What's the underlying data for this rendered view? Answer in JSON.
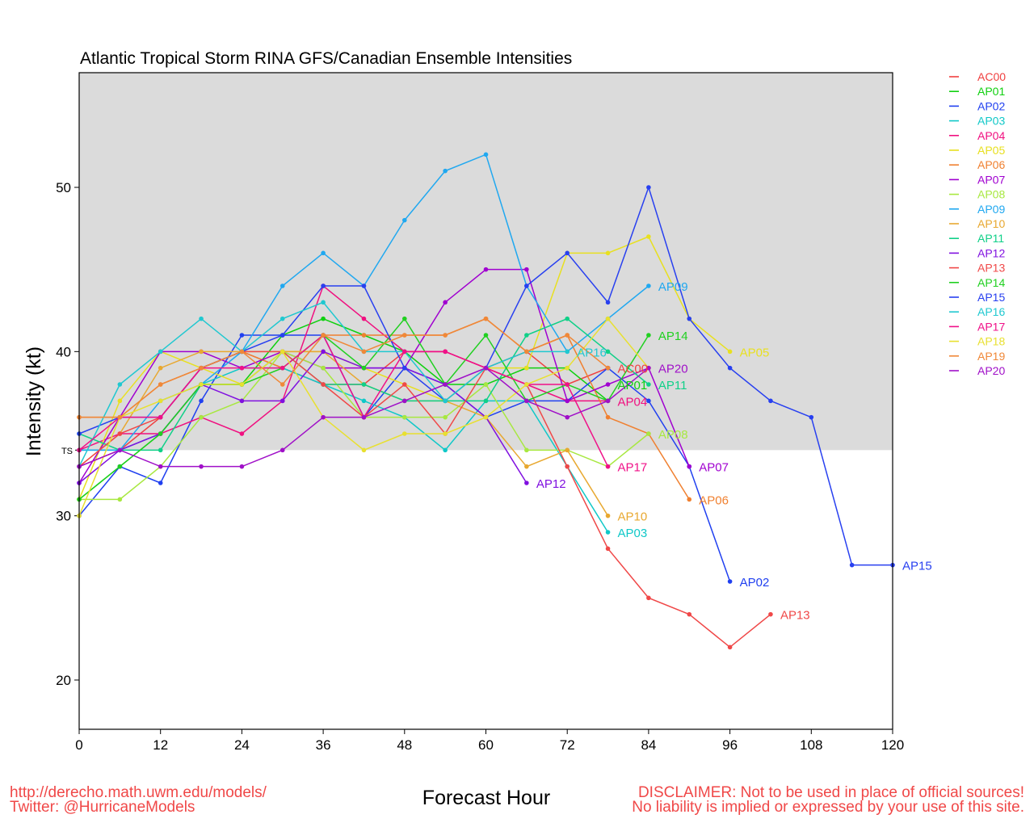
{
  "chart_data": {
    "type": "line",
    "title": "Atlantic Tropical Storm RINA GFS/Canadian Ensemble Intensities",
    "xlabel": "Forecast Hour",
    "ylabel": "Intensity (kt)",
    "xlim": [
      0,
      120
    ],
    "ylim": [
      17,
      57
    ],
    "xticks": [
      0,
      12,
      24,
      36,
      48,
      60,
      72,
      84,
      96,
      108,
      120
    ],
    "yticks": [
      20,
      30,
      40,
      50
    ],
    "threshold": {
      "label": "TS",
      "value": 34,
      "shade_above": true,
      "shade_color": "#dbdbdb"
    },
    "legend_position": "right-outside-top",
    "series": [
      {
        "name": "AC00",
        "color": "#f04040",
        "x": [
          0,
          6,
          12,
          18,
          24,
          30,
          36,
          42,
          48,
          54,
          60,
          66,
          72,
          78
        ],
        "values": [
          33,
          34,
          36,
          39,
          40,
          39,
          38,
          38,
          40,
          40,
          39,
          40,
          38,
          39
        ]
      },
      {
        "name": "AP01",
        "color": "#10d010",
        "x": [
          0,
          6,
          12,
          18,
          24,
          30,
          36,
          42,
          48,
          54,
          60,
          66,
          72,
          78
        ],
        "values": [
          31,
          33,
          35,
          38,
          38,
          41,
          42,
          41,
          40,
          38,
          38,
          39,
          39,
          37
        ]
      },
      {
        "name": "AP02",
        "color": "#2040f0",
        "x": [
          0,
          6,
          12,
          18,
          24,
          30,
          36,
          42,
          48,
          54,
          60,
          66,
          72,
          78,
          84,
          90,
          96
        ],
        "values": [
          30,
          33,
          32,
          37,
          41,
          41,
          41,
          36,
          39,
          38,
          36,
          37,
          37,
          39,
          37,
          33,
          26
        ]
      },
      {
        "name": "AP03",
        "color": "#10c8c8",
        "x": [
          0,
          6,
          12,
          18,
          24,
          30,
          36,
          42,
          48,
          54,
          60,
          66,
          72,
          78
        ],
        "values": [
          34,
          34,
          35,
          38,
          39,
          39,
          38,
          37,
          36,
          34,
          37,
          37,
          33,
          29
        ]
      },
      {
        "name": "AP04",
        "color": "#f01080",
        "x": [
          0,
          6,
          12,
          18,
          24,
          30,
          36,
          42,
          48,
          54,
          60,
          66,
          72,
          78
        ],
        "values": [
          34,
          35,
          35,
          36,
          35,
          37,
          44,
          42,
          40,
          40,
          39,
          38,
          37,
          37
        ]
      },
      {
        "name": "AP05",
        "color": "#e8e020",
        "x": [
          0,
          6,
          12,
          18,
          24,
          30,
          36,
          42,
          48,
          54,
          60,
          66,
          72,
          78,
          84,
          90,
          96
        ],
        "values": [
          31,
          37,
          40,
          39,
          38,
          40,
          40,
          39,
          38,
          37,
          39,
          39,
          46,
          46,
          47,
          42,
          40
        ]
      },
      {
        "name": "AP06",
        "color": "#f08030",
        "x": [
          0,
          6,
          12,
          18,
          24,
          30,
          36,
          42,
          48,
          54,
          60,
          66,
          72,
          78,
          84,
          90
        ],
        "values": [
          36,
          36,
          38,
          39,
          40,
          39,
          41,
          41,
          41,
          41,
          42,
          40,
          41,
          36,
          35,
          31
        ]
      },
      {
        "name": "AP07",
        "color": "#a000d0",
        "x": [
          0,
          6,
          12,
          18,
          24,
          30,
          36,
          42,
          48,
          54,
          60,
          66,
          72,
          78,
          84,
          90
        ],
        "values": [
          32,
          36,
          40,
          40,
          39,
          40,
          39,
          39,
          39,
          43,
          45,
          45,
          37,
          38,
          39,
          33
        ]
      },
      {
        "name": "AP08",
        "color": "#a8e840",
        "x": [
          0,
          6,
          12,
          18,
          24,
          30,
          36,
          42,
          48,
          54,
          60,
          66,
          72,
          78,
          84
        ],
        "values": [
          31,
          31,
          33,
          36,
          37,
          40,
          39,
          36,
          36,
          36,
          38,
          34,
          34,
          33,
          35
        ]
      },
      {
        "name": "AP09",
        "color": "#20a8f0",
        "x": [
          0,
          6,
          12,
          18,
          24,
          30,
          36,
          42,
          48,
          54,
          60,
          66,
          72,
          78,
          84
        ],
        "values": [
          34,
          34,
          37,
          38,
          40,
          44,
          46,
          44,
          48,
          51,
          52,
          44,
          40,
          42,
          44
        ]
      },
      {
        "name": "AP10",
        "color": "#e8a830",
        "x": [
          0,
          6,
          12,
          18,
          24,
          30,
          36,
          42,
          48,
          54,
          60,
          66,
          72,
          78
        ],
        "values": [
          33,
          35,
          39,
          40,
          40,
          40,
          40,
          38,
          37,
          37,
          36,
          33,
          34,
          30
        ]
      },
      {
        "name": "AP11",
        "color": "#10d088",
        "x": [
          0,
          6,
          12,
          18,
          24,
          30,
          36,
          42,
          48,
          54,
          60,
          66,
          72,
          78,
          84
        ],
        "values": [
          35,
          34,
          34,
          38,
          38,
          40,
          38,
          38,
          37,
          37,
          37,
          41,
          42,
          40,
          38
        ]
      },
      {
        "name": "AP12",
        "color": "#8010e0",
        "x": [
          0,
          6,
          12,
          18,
          24,
          30,
          36,
          42,
          48,
          54,
          60,
          66
        ],
        "values": [
          32,
          34,
          35,
          38,
          37,
          37,
          40,
          39,
          39,
          38,
          36,
          32
        ]
      },
      {
        "name": "AP13",
        "color": "#f04848",
        "x": [
          0,
          6,
          12,
          18,
          24,
          30,
          36,
          42,
          48,
          54,
          60,
          66,
          72,
          78,
          84,
          90,
          96,
          102
        ],
        "values": [
          33,
          35,
          36,
          39,
          40,
          40,
          38,
          36,
          38,
          35,
          39,
          38,
          33,
          28,
          25,
          24,
          22,
          24
        ]
      },
      {
        "name": "AP14",
        "color": "#20d020",
        "x": [
          0,
          6,
          12,
          18,
          24,
          30,
          36,
          42,
          48,
          54,
          60,
          66,
          72,
          78,
          84
        ],
        "values": [
          31,
          33,
          35,
          38,
          38,
          39,
          41,
          39,
          42,
          38,
          41,
          37,
          38,
          37,
          41
        ]
      },
      {
        "name": "AP15",
        "color": "#2840f0",
        "x": [
          0,
          6,
          12,
          18,
          24,
          30,
          36,
          42,
          48,
          54,
          60,
          66,
          72,
          78,
          84,
          90,
          96,
          102,
          108,
          114,
          120
        ],
        "values": [
          35,
          36,
          36,
          39,
          40,
          41,
          44,
          44,
          39,
          37,
          39,
          44,
          46,
          43,
          50,
          42,
          39,
          37,
          36,
          27,
          27
        ]
      },
      {
        "name": "AP16",
        "color": "#20c8d0",
        "x": [
          0,
          6,
          12,
          18,
          24,
          30,
          36,
          42,
          48,
          54,
          60,
          66,
          72
        ],
        "values": [
          33,
          38,
          40,
          42,
          40,
          42,
          43,
          40,
          40,
          37,
          39,
          40,
          40
        ]
      },
      {
        "name": "AP17",
        "color": "#f01088",
        "x": [
          0,
          6,
          12,
          18,
          24,
          30,
          36,
          42,
          48,
          54,
          60,
          66,
          72,
          78
        ],
        "values": [
          34,
          36,
          36,
          39,
          39,
          39,
          41,
          36,
          40,
          40,
          39,
          38,
          38,
          33
        ]
      },
      {
        "name": "AP18",
        "color": "#e8e030",
        "x": [
          0,
          6,
          12,
          18,
          24,
          30,
          36,
          42,
          48,
          54,
          60,
          66,
          72,
          78,
          84
        ],
        "values": [
          30,
          36,
          37,
          38,
          38,
          40,
          36,
          34,
          35,
          35,
          36,
          38,
          39,
          42,
          39
        ]
      },
      {
        "name": "AP19",
        "color": "#f08838",
        "x": [
          0,
          6,
          12,
          18,
          24,
          30,
          36,
          42,
          48,
          54,
          60,
          66,
          72,
          78
        ],
        "values": [
          36,
          36,
          38,
          39,
          40,
          38,
          41,
          40,
          41,
          41,
          42,
          40,
          41,
          39
        ]
      },
      {
        "name": "AP20",
        "color": "#a010c8",
        "x": [
          0,
          6,
          12,
          18,
          24,
          30,
          36,
          42,
          48,
          54,
          60,
          66,
          72,
          78,
          84
        ],
        "values": [
          33,
          34,
          33,
          33,
          33,
          34,
          36,
          36,
          37,
          38,
          39,
          37,
          36,
          37,
          39
        ]
      }
    ],
    "end_labels": [
      {
        "name": "AP09",
        "x": 84,
        "y": 44
      },
      {
        "name": "AP14",
        "x": 84,
        "y": 41
      },
      {
        "name": "AP16",
        "x": 72,
        "y": 40
      },
      {
        "name": "AC00",
        "x": 78,
        "y": 39
      },
      {
        "name": "AP20",
        "x": 84,
        "y": 39
      },
      {
        "name": "AP01",
        "x": 78,
        "y": 38
      },
      {
        "name": "AP11",
        "x": 84,
        "y": 38
      },
      {
        "name": "AP04",
        "x": 78,
        "y": 37
      },
      {
        "name": "AP08",
        "x": 84,
        "y": 35
      },
      {
        "name": "AP17",
        "x": 78,
        "y": 33
      },
      {
        "name": "AP07",
        "x": 90,
        "y": 33
      },
      {
        "name": "AP12",
        "x": 66,
        "y": 32
      },
      {
        "name": "AP06",
        "x": 90,
        "y": 31
      },
      {
        "name": "AP10",
        "x": 78,
        "y": 30
      },
      {
        "name": "AP03",
        "x": 78,
        "y": 29
      },
      {
        "name": "AP05",
        "x": 96,
        "y": 40
      },
      {
        "name": "AP02",
        "x": 96,
        "y": 26
      },
      {
        "name": "AP13",
        "x": 102,
        "y": 24
      },
      {
        "name": "AP15",
        "x": 120,
        "y": 27
      }
    ]
  },
  "footer": {
    "url": "http://derecho.math.uwm.edu/models/",
    "twitter": "Twitter: @HurricaneModels",
    "disclaimer_line1": "DISCLAIMER: Not to be used in place of official sources!",
    "disclaimer_line2": "No liability is implied or expressed by your use of this site."
  }
}
